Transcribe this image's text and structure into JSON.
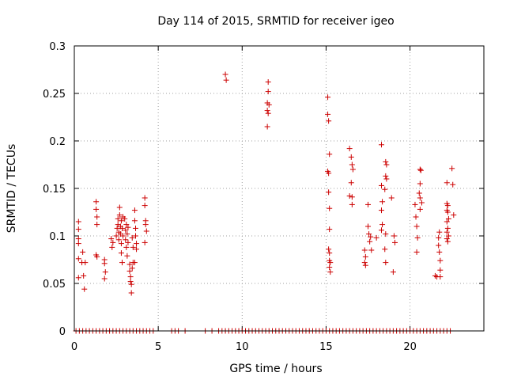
{
  "chart_data": {
    "type": "scatter",
    "title": "Day 114 of 2015, SRMTID for receiver igeo",
    "xlabel": "GPS time / hours",
    "ylabel": "SRMTID / TECUs",
    "xlim": [
      0,
      24.4
    ],
    "ylim": [
      0,
      0.3
    ],
    "xticks": [
      0,
      5,
      10,
      15,
      20
    ],
    "xtick_labels": [
      "0",
      "5",
      "10",
      "15",
      "20"
    ],
    "yticks": [
      0,
      0.05,
      0.1,
      0.15,
      0.2,
      0.25,
      0.3
    ],
    "ytick_labels": [
      "0",
      "0.05",
      "0.1",
      "0.15",
      "0.2",
      "0.25",
      "0.3"
    ],
    "grid": true,
    "marker": "+",
    "color": "#cc0000",
    "series": [
      {
        "name": "SRMTID",
        "points": [
          [
            0.25,
            0.115
          ],
          [
            0.25,
            0.107
          ],
          [
            0.25,
            0.097
          ],
          [
            0.25,
            0.092
          ],
          [
            0.25,
            0.076
          ],
          [
            0.25,
            0.056
          ],
          [
            0.45,
            0.072
          ],
          [
            0.5,
            0.083
          ],
          [
            0.55,
            0.058
          ],
          [
            0.6,
            0.044
          ],
          [
            0.65,
            0.072
          ],
          [
            1.3,
            0.136
          ],
          [
            1.3,
            0.128
          ],
          [
            1.35,
            0.12
          ],
          [
            1.35,
            0.112
          ],
          [
            1.3,
            0.08
          ],
          [
            1.35,
            0.078
          ],
          [
            1.8,
            0.075
          ],
          [
            1.8,
            0.071
          ],
          [
            1.85,
            0.062
          ],
          [
            1.8,
            0.055
          ],
          [
            2.2,
            0.097
          ],
          [
            2.25,
            0.088
          ],
          [
            2.3,
            0.093
          ],
          [
            2.5,
            0.1
          ],
          [
            2.55,
            0.108
          ],
          [
            2.6,
            0.112
          ],
          [
            2.6,
            0.118
          ],
          [
            2.65,
            0.104
          ],
          [
            2.65,
            0.096
          ],
          [
            2.7,
            0.13
          ],
          [
            2.7,
            0.122
          ],
          [
            2.75,
            0.11
          ],
          [
            2.75,
            0.102
          ],
          [
            2.8,
            0.116
          ],
          [
            2.8,
            0.092
          ],
          [
            2.8,
            0.082
          ],
          [
            2.85,
            0.108
          ],
          [
            2.85,
            0.072
          ],
          [
            2.9,
            0.12
          ],
          [
            2.9,
            0.1
          ],
          [
            3.0,
            0.118
          ],
          [
            3.05,
            0.106
          ],
          [
            3.05,
            0.096
          ],
          [
            3.1,
            0.112
          ],
          [
            3.1,
            0.088
          ],
          [
            3.15,
            0.102
          ],
          [
            3.15,
            0.079
          ],
          [
            3.2,
            0.109
          ],
          [
            3.2,
            0.093
          ],
          [
            3.3,
            0.07
          ],
          [
            3.3,
            0.063
          ],
          [
            3.35,
            0.057
          ],
          [
            3.35,
            0.052
          ],
          [
            3.4,
            0.049
          ],
          [
            3.4,
            0.04
          ],
          [
            3.45,
            0.066
          ],
          [
            3.45,
            0.098
          ],
          [
            3.5,
            0.088
          ],
          [
            3.5,
            0.072
          ],
          [
            3.6,
            0.127
          ],
          [
            3.6,
            0.116
          ],
          [
            3.65,
            0.108
          ],
          [
            3.65,
            0.1
          ],
          [
            3.7,
            0.092
          ],
          [
            3.7,
            0.086
          ],
          [
            3.6,
            0.072
          ],
          [
            4.2,
            0.14
          ],
          [
            4.2,
            0.132
          ],
          [
            4.25,
            0.116
          ],
          [
            4.25,
            0.112
          ],
          [
            4.3,
            0.105
          ],
          [
            4.2,
            0.093
          ],
          [
            9.0,
            0.27
          ],
          [
            9.05,
            0.264
          ],
          [
            11.55,
            0.262
          ],
          [
            11.55,
            0.252
          ],
          [
            11.5,
            0.24
          ],
          [
            11.6,
            0.238
          ],
          [
            11.5,
            0.232
          ],
          [
            11.55,
            0.229
          ],
          [
            11.5,
            0.215
          ],
          [
            15.1,
            0.246
          ],
          [
            15.1,
            0.228
          ],
          [
            15.15,
            0.221
          ],
          [
            15.2,
            0.186
          ],
          [
            15.1,
            0.168
          ],
          [
            15.15,
            0.166
          ],
          [
            15.15,
            0.146
          ],
          [
            15.2,
            0.129
          ],
          [
            15.2,
            0.107
          ],
          [
            15.15,
            0.086
          ],
          [
            15.2,
            0.082
          ],
          [
            15.2,
            0.074
          ],
          [
            15.25,
            0.072
          ],
          [
            15.2,
            0.067
          ],
          [
            15.25,
            0.062
          ],
          [
            16.4,
            0.192
          ],
          [
            16.5,
            0.183
          ],
          [
            16.55,
            0.175
          ],
          [
            16.6,
            0.17
          ],
          [
            16.5,
            0.156
          ],
          [
            16.4,
            0.142
          ],
          [
            16.55,
            0.141
          ],
          [
            16.55,
            0.133
          ],
          [
            17.3,
            0.085
          ],
          [
            17.35,
            0.078
          ],
          [
            17.3,
            0.072
          ],
          [
            17.35,
            0.069
          ],
          [
            17.5,
            0.133
          ],
          [
            17.5,
            0.11
          ],
          [
            17.55,
            0.102
          ],
          [
            17.6,
            0.094
          ],
          [
            17.65,
            0.099
          ],
          [
            17.7,
            0.085
          ],
          [
            18.0,
            0.098
          ],
          [
            18.3,
            0.196
          ],
          [
            18.3,
            0.153
          ],
          [
            18.35,
            0.136
          ],
          [
            18.3,
            0.127
          ],
          [
            18.35,
            0.112
          ],
          [
            18.3,
            0.106
          ],
          [
            18.55,
            0.178
          ],
          [
            18.6,
            0.175
          ],
          [
            18.55,
            0.163
          ],
          [
            18.6,
            0.16
          ],
          [
            18.5,
            0.149
          ],
          [
            18.55,
            0.102
          ],
          [
            18.5,
            0.086
          ],
          [
            18.55,
            0.072
          ],
          [
            18.9,
            0.14
          ],
          [
            19.05,
            0.1
          ],
          [
            19.1,
            0.093
          ],
          [
            19.0,
            0.062
          ],
          [
            20.3,
            0.133
          ],
          [
            20.35,
            0.12
          ],
          [
            20.4,
            0.11
          ],
          [
            20.45,
            0.098
          ],
          [
            20.4,
            0.083
          ],
          [
            20.6,
            0.17
          ],
          [
            20.65,
            0.169
          ],
          [
            20.6,
            0.155
          ],
          [
            20.55,
            0.145
          ],
          [
            20.6,
            0.14
          ],
          [
            20.6,
            0.128
          ],
          [
            20.7,
            0.135
          ],
          [
            21.5,
            0.058
          ],
          [
            21.6,
            0.057
          ],
          [
            21.7,
            0.098
          ],
          [
            21.75,
            0.104
          ],
          [
            21.7,
            0.09
          ],
          [
            21.75,
            0.083
          ],
          [
            21.8,
            0.074
          ],
          [
            21.8,
            0.064
          ],
          [
            21.8,
            0.057
          ],
          [
            22.2,
            0.156
          ],
          [
            22.2,
            0.134
          ],
          [
            22.25,
            0.132
          ],
          [
            22.2,
            0.127
          ],
          [
            22.25,
            0.125
          ],
          [
            22.3,
            0.118
          ],
          [
            22.2,
            0.115
          ],
          [
            22.25,
            0.108
          ],
          [
            22.2,
            0.104
          ],
          [
            22.3,
            0.1
          ],
          [
            22.2,
            0.097
          ],
          [
            22.25,
            0.094
          ],
          [
            22.5,
            0.171
          ],
          [
            22.55,
            0.154
          ],
          [
            22.6,
            0.122
          ]
        ],
        "zero_times": [
          0.1,
          0.3,
          0.5,
          0.7,
          0.9,
          1.1,
          1.3,
          1.5,
          1.7,
          1.9,
          2.1,
          2.3,
          2.5,
          2.7,
          2.9,
          3.1,
          3.3,
          3.5,
          3.7,
          3.9,
          4.1,
          4.3,
          4.5,
          4.7,
          5.8,
          6.0,
          6.2,
          6.6,
          7.8,
          8.2,
          8.6,
          8.8,
          9.0,
          9.2,
          9.4,
          9.6,
          9.8,
          10.0,
          10.2,
          10.4,
          10.6,
          10.8,
          11.0,
          11.2,
          11.4,
          11.6,
          11.8,
          12.0,
          12.2,
          12.4,
          12.6,
          12.8,
          13.0,
          13.2,
          13.4,
          13.6,
          13.8,
          14.0,
          14.2,
          14.4,
          14.6,
          14.8,
          15.0,
          15.2,
          15.4,
          15.6,
          15.8,
          16.0,
          16.2,
          16.4,
          16.6,
          16.8,
          17.0,
          17.2,
          17.4,
          17.6,
          17.8,
          18.0,
          18.2,
          18.4,
          18.6,
          18.8,
          19.0,
          19.2,
          19.4,
          19.6,
          19.8,
          20.0,
          20.2,
          20.4,
          20.6,
          20.8,
          21.0,
          21.2,
          21.4,
          21.6,
          21.8,
          22.0,
          22.2,
          22.4
        ]
      }
    ]
  }
}
